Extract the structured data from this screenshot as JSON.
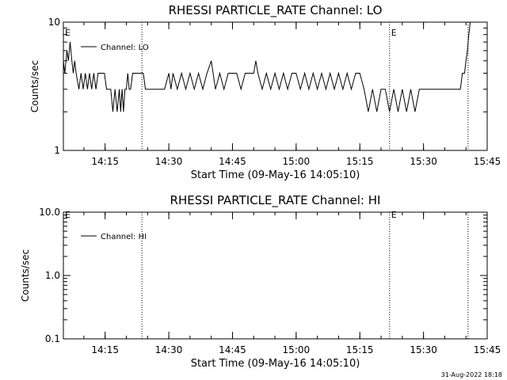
{
  "chart_data": [
    {
      "type": "line",
      "title": "RHESSI PARTICLE_RATE Channel: LO",
      "xlabel": "Start Time (09-May-16 14:05:10)",
      "ylabel": "Counts/sec",
      "y_scale": "log",
      "ylim": [
        1,
        10
      ],
      "y_ticks": [
        "1",
        "10"
      ],
      "xlim": [
        "14:05:10",
        "15:45:00"
      ],
      "x_ticks": [
        "14:15",
        "14:30",
        "14:45",
        "15:00",
        "15:15",
        "15:30",
        "15:45"
      ],
      "legend_position": "top-left",
      "series": [
        {
          "name": "Channel: LO",
          "x": [
            "14:05:10",
            "14:05:30",
            "14:06:00",
            "14:06:20",
            "14:06:45",
            "14:07:10",
            "14:07:30",
            "14:07:50",
            "14:08:10",
            "14:08:50",
            "14:09:20",
            "14:09:50",
            "14:10:20",
            "14:10:50",
            "14:11:20",
            "14:11:50",
            "14:12:20",
            "14:12:50",
            "14:13:20",
            "14:13:50",
            "14:14:20",
            "14:14:50",
            "14:15:20",
            "14:15:50",
            "14:16:20",
            "14:16:50",
            "14:17:20",
            "14:17:50",
            "14:18:20",
            "14:18:40",
            "14:19:00",
            "14:19:20",
            "14:19:40",
            "14:20:00",
            "14:20:20",
            "14:20:40",
            "14:21:00",
            "14:21:30",
            "14:22:00",
            "14:22:30",
            "14:23:00",
            "14:23:30",
            "14:24:00",
            "14:24:30",
            "14:25:00",
            "14:25:30",
            "14:26:00",
            "14:27:00",
            "14:28:00",
            "14:29:00",
            "14:30:00",
            "14:30:30",
            "14:31:00",
            "14:32:00",
            "14:33:00",
            "14:34:00",
            "14:35:00",
            "14:36:00",
            "14:37:00",
            "14:38:00",
            "14:39:00",
            "14:40:00",
            "14:41:00",
            "14:42:00",
            "14:43:00",
            "14:44:00",
            "14:45:00",
            "14:46:00",
            "14:47:00",
            "14:48:00",
            "14:49:00",
            "14:50:00",
            "14:50:30",
            "14:51:00",
            "14:52:00",
            "14:53:00",
            "14:54:00",
            "14:55:00",
            "14:56:00",
            "14:57:00",
            "14:58:00",
            "14:59:00",
            "15:00:00",
            "15:01:00",
            "15:02:00",
            "15:03:00",
            "15:04:00",
            "15:05:00",
            "15:06:00",
            "15:07:00",
            "15:08:00",
            "15:09:00",
            "15:10:00",
            "15:11:00",
            "15:12:00",
            "15:13:00",
            "15:14:00",
            "15:15:00",
            "15:16:00",
            "15:17:00",
            "15:18:00",
            "15:19:00",
            "15:20:00",
            "15:21:00",
            "15:22:00",
            "15:23:00",
            "15:24:00",
            "15:25:00",
            "15:26:00",
            "15:27:00",
            "15:28:00",
            "15:29:00",
            "15:30:00",
            "15:31:00",
            "15:32:00",
            "15:33:00",
            "15:34:00",
            "15:35:00",
            "15:36:00",
            "15:37:00",
            "15:38:00",
            "15:38:40",
            "15:39:10",
            "15:39:40",
            "15:40:00",
            "15:40:20",
            "15:40:40",
            "15:41:00"
          ],
          "y": [
            5,
            4,
            6,
            5,
            7,
            5,
            4,
            5,
            4,
            3,
            4,
            3,
            4,
            3,
            4,
            3,
            4,
            3,
            4,
            4,
            4,
            4,
            3,
            3,
            3,
            2,
            3,
            2,
            3,
            2,
            3,
            2,
            3,
            3,
            4,
            3,
            3,
            4,
            4,
            4,
            4,
            4,
            4,
            3,
            3,
            3,
            3,
            3,
            3,
            3,
            4,
            3,
            4,
            3,
            4,
            3,
            4,
            3,
            4,
            3,
            4,
            5,
            3,
            4,
            3,
            4,
            4,
            4,
            3,
            4,
            4,
            4,
            5,
            4,
            3,
            4,
            3,
            4,
            3,
            4,
            3,
            4,
            4,
            3,
            4,
            3,
            4,
            3,
            4,
            3,
            4,
            3,
            4,
            3,
            4,
            3,
            4,
            4,
            3,
            2,
            3,
            2,
            3,
            3,
            2,
            3,
            2,
            3,
            2,
            3,
            2,
            3,
            3,
            3,
            3,
            3,
            3,
            3,
            3,
            3,
            3,
            3,
            4,
            4,
            5,
            6,
            8,
            10
          ]
        }
      ],
      "annotations": [
        {
          "text": "E",
          "x": "14:05:10"
        },
        {
          "text": "E",
          "x": "15:22:00"
        }
      ],
      "vertical_dotted_lines_x": [
        "14:23:40",
        "15:22:00",
        "15:40:30"
      ]
    },
    {
      "type": "line",
      "title": "RHESSI PARTICLE_RATE Channel: HI",
      "xlabel": "Start Time (09-May-16 14:05:10)",
      "ylabel": "Counts/sec",
      "y_scale": "log",
      "ylim": [
        0.1,
        10.0
      ],
      "y_ticks": [
        "0.1",
        "1.0",
        "10.0"
      ],
      "xlim": [
        "14:05:10",
        "15:45:00"
      ],
      "x_ticks": [
        "14:15",
        "14:30",
        "14:45",
        "15:00",
        "15:15",
        "15:30",
        "15:45"
      ],
      "legend_position": "top-left",
      "series": [
        {
          "name": "Channel: HI",
          "x": [],
          "y": []
        }
      ],
      "annotations": [
        {
          "text": "E",
          "x": "14:05:10"
        },
        {
          "text": "E",
          "x": "15:22:00"
        }
      ],
      "vertical_dotted_lines_x": [
        "14:23:40",
        "15:22:00",
        "15:40:30"
      ]
    }
  ],
  "footer": {
    "timestamp": "31-Aug-2022 18:18"
  }
}
